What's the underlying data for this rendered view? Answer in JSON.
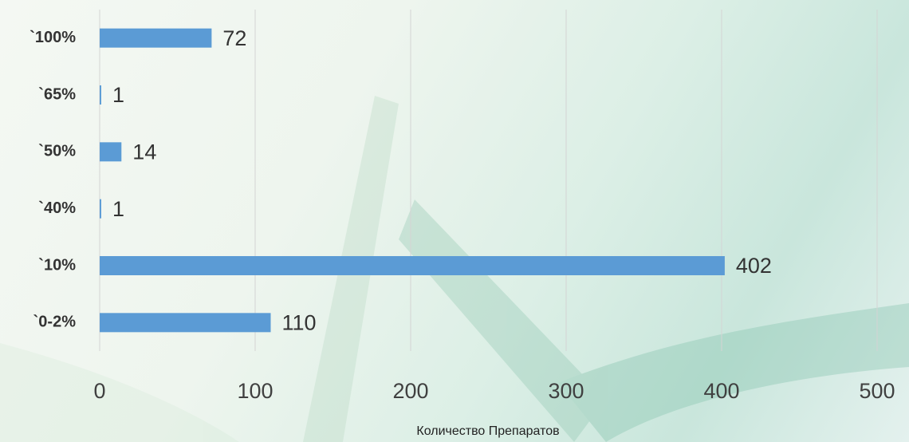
{
  "chart_data": {
    "type": "barh",
    "x_label": "Количество Препаратов",
    "categories": [
      "`100%",
      "`65%",
      "`50%",
      "`40%",
      "`10%",
      "`0-2%"
    ],
    "values": [
      72,
      1,
      14,
      1,
      402,
      110
    ],
    "color": "#5b9bd5",
    "xlim": [
      0,
      500
    ],
    "xticks": [
      0,
      100,
      200,
      300,
      400,
      500
    ],
    "grid": true
  }
}
